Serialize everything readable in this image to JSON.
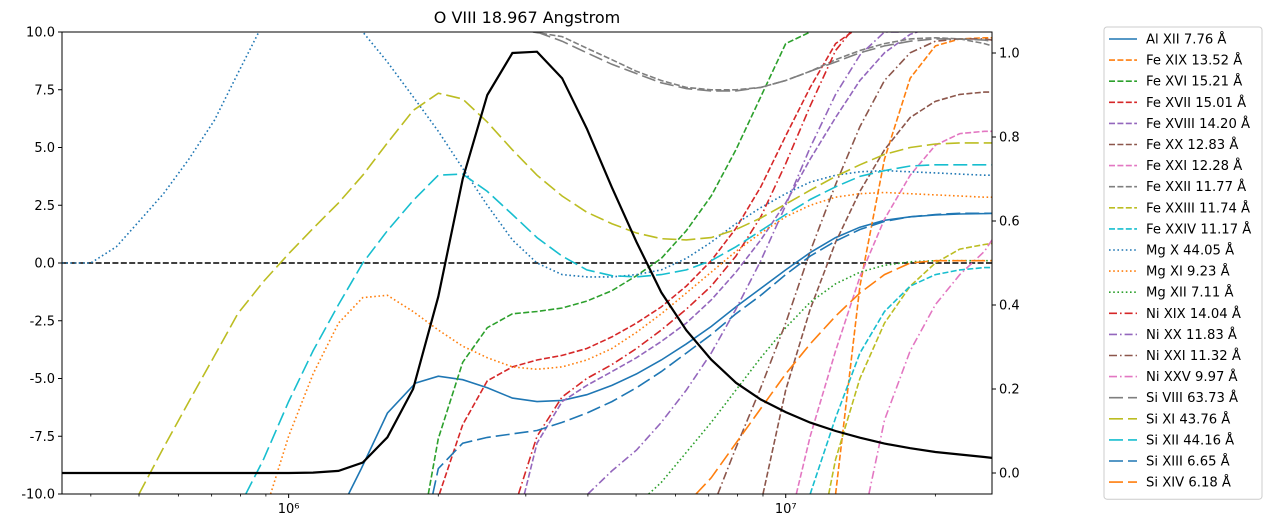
{
  "chart_data": {
    "type": "line",
    "title": "O VIII 18.967 Angstrom",
    "xscale": "log",
    "xlim": [
      350000,
      26000000
    ],
    "x_ticks": [
      {
        "value": 1000000,
        "label": "10⁶"
      },
      {
        "value": 10000000,
        "label": "10⁷"
      }
    ],
    "ylim": [
      -10,
      10
    ],
    "y_ticks": [
      "-10.0",
      "-7.5",
      "-5.0",
      "-2.5",
      "0.0",
      "2.5",
      "5.0",
      "7.5",
      "10.0"
    ],
    "y2lim": [
      -0.05,
      1.05
    ],
    "y2_ticks": [
      "0.0",
      "0.2",
      "0.4",
      "0.6",
      "0.8",
      "1.0"
    ],
    "zero_line": {
      "y": 0,
      "color": "#000000",
      "dash": "dashed"
    },
    "legend_position": "outside-right",
    "series": [
      {
        "name": "Al XII 7.76 Å",
        "color": "#1f77b4",
        "dash": "solid",
        "x": [
          1320000,
          1400000,
          1580000,
          1800000,
          2000000,
          2240000,
          2510000,
          2820000,
          3160000,
          3550000,
          3980000,
          4470000,
          5010000,
          5620000,
          6310000,
          7080000,
          7940000,
          8910000,
          10000000,
          11200000,
          12600000,
          14100000,
          15800000,
          17800000,
          20000000,
          22400000,
          25100000,
          26000000
        ],
        "y": [
          -10,
          -8.9,
          -6.5,
          -5.2,
          -4.9,
          -5.05,
          -5.4,
          -5.85,
          -6.0,
          -5.95,
          -5.7,
          -5.3,
          -4.8,
          -4.2,
          -3.5,
          -2.75,
          -1.9,
          -1.1,
          -0.3,
          0.45,
          1.1,
          1.55,
          1.85,
          2.0,
          2.08,
          2.12,
          2.14,
          2.15
        ]
      },
      {
        "name": "Fe XIX 13.52 Å",
        "color": "#ff7f0e",
        "dash": "dashed",
        "x": [
          12600000,
          14100000,
          15800000,
          17800000,
          20000000,
          22400000,
          25100000,
          26000000
        ],
        "y": [
          -10,
          -1,
          4.5,
          8,
          9.4,
          9.7,
          9.75,
          9.75
        ]
      },
      {
        "name": "Fe XVI 15.21 Å",
        "color": "#2ca02c",
        "dash": "dashed",
        "x": [
          1910000,
          2000000,
          2240000,
          2510000,
          2820000,
          3160000,
          3550000,
          3980000,
          4470000,
          5010000,
          5620000,
          6310000,
          7080000,
          7940000,
          8910000,
          10000000,
          11200000
        ],
        "y": [
          -10,
          -7.6,
          -4.3,
          -2.8,
          -2.2,
          -2.1,
          -1.95,
          -1.65,
          -1.2,
          -0.55,
          0.2,
          1.4,
          2.9,
          4.9,
          7.2,
          9.5,
          10
        ]
      },
      {
        "name": "Fe XVII 15.01 Å",
        "color": "#d62728",
        "dash": "dashed",
        "x": [
          2010000,
          2240000,
          2510000,
          2820000,
          3160000,
          3550000,
          3980000,
          4470000,
          5010000,
          5620000,
          6310000,
          7080000,
          7940000,
          8910000,
          10000000,
          11200000,
          12600000,
          13600000
        ],
        "y": [
          -10,
          -7,
          -5.1,
          -4.5,
          -4.2,
          -4.0,
          -3.7,
          -3.2,
          -2.6,
          -1.9,
          -1.0,
          0.1,
          1.5,
          3.3,
          5.5,
          7.6,
          9.5,
          10
        ]
      },
      {
        "name": "Fe XVIII 14.20 Å",
        "color": "#9467bd",
        "dash": "dashed",
        "x": [
          2980000,
          3160000,
          3550000,
          3980000,
          4470000,
          5010000,
          5620000,
          6310000,
          7080000,
          7940000,
          8910000,
          10000000,
          11200000,
          12600000,
          14100000,
          15800000,
          17800000,
          18400000
        ],
        "y": [
          -10,
          -7.8,
          -6.0,
          -5.3,
          -4.7,
          -4.1,
          -3.4,
          -2.6,
          -1.6,
          -0.4,
          1.0,
          2.6,
          4.5,
          6.3,
          7.9,
          9.1,
          9.9,
          10
        ]
      },
      {
        "name": "Fe XX 12.83 Å",
        "color": "#8c564b",
        "dash": "dashed",
        "x": [
          9000000,
          10000000,
          11200000,
          12600000,
          14100000,
          15800000,
          17800000,
          20000000,
          22400000,
          25100000,
          26000000
        ],
        "y": [
          -10,
          -5.5,
          -2,
          0.9,
          3.1,
          4.9,
          6.3,
          7.0,
          7.3,
          7.4,
          7.4
        ]
      },
      {
        "name": "Fe XXI 12.28 Å",
        "color": "#e377c2",
        "dash": "dashed",
        "x": [
          10500000,
          11200000,
          12600000,
          14100000,
          15800000,
          17800000,
          20000000,
          22400000,
          25100000,
          26000000
        ],
        "y": [
          -10,
          -7.5,
          -3.8,
          -0.6,
          1.9,
          3.8,
          5.1,
          5.6,
          5.7,
          5.7
        ]
      },
      {
        "name": "Fe XXII 11.77 Å",
        "color": "#7f7f7f",
        "dash": "dashed",
        "x": [
          3100000,
          3550000,
          3980000,
          4470000,
          5010000,
          5620000,
          6310000,
          7080000,
          7940000,
          8910000,
          10000000,
          11200000,
          12600000,
          14100000,
          15800000,
          17800000,
          20000000,
          22400000,
          25100000,
          26000000
        ],
        "y": [
          10,
          9.8,
          9.3,
          8.8,
          8.3,
          7.9,
          7.6,
          7.5,
          7.5,
          7.6,
          7.9,
          8.3,
          8.8,
          9.2,
          9.5,
          9.7,
          9.75,
          9.7,
          9.5,
          9.4
        ]
      },
      {
        "name": "Fe XXIII 11.74 Å",
        "color": "#bcbd22",
        "dash": "dashed",
        "x": [
          12200000,
          12600000,
          14100000,
          15800000,
          17800000,
          20000000,
          22400000,
          25100000,
          26000000
        ],
        "y": [
          -10,
          -8.5,
          -5.0,
          -2.6,
          -1.0,
          0.0,
          0.6,
          0.8,
          0.85
        ]
      },
      {
        "name": "Fe XXIV 11.17 Å",
        "color": "#17becf",
        "dash": "dashed",
        "x": [
          11200000,
          12600000,
          14100000,
          15800000,
          17800000,
          20000000,
          22400000,
          25100000,
          26000000
        ],
        "y": [
          -10,
          -6.7,
          -3.9,
          -2.1,
          -1.0,
          -0.5,
          -0.3,
          -0.2,
          -0.2
        ]
      },
      {
        "name": "Mg X 44.05 Å",
        "color": "#1f77b4",
        "dash": "dotted",
        "x": [
          350000,
          400000,
          450000,
          500000,
          560000,
          630000,
          710000,
          790000,
          890000,
          1000000,
          1120000,
          1260000,
          1410000,
          1580000,
          1780000,
          2000000,
          2240000,
          2510000,
          2820000,
          3160000,
          3550000,
          3980000,
          4470000,
          5010000,
          5620000,
          6310000,
          7080000,
          7940000,
          8910000,
          10000000,
          11200000,
          12600000,
          14100000,
          15800000,
          17800000,
          20000000,
          22400000,
          25100000,
          26000000
        ],
        "y": [
          0,
          0,
          0.7,
          1.8,
          3,
          4.5,
          6.2,
          8.2,
          10.4,
          11.6,
          11.5,
          11,
          10,
          8.7,
          7.2,
          5.7,
          4.1,
          2.5,
          1.0,
          0,
          -0.5,
          -0.6,
          -0.6,
          -0.5,
          -0.3,
          0.2,
          0.9,
          1.7,
          2.4,
          3.0,
          3.5,
          3.8,
          3.95,
          4.0,
          3.95,
          3.9,
          3.85,
          3.8,
          3.8
        ]
      },
      {
        "name": "Mg XI 9.23 Å",
        "color": "#ff7f0e",
        "dash": "dotted",
        "x": [
          920000,
          1000000,
          1120000,
          1260000,
          1410000,
          1580000,
          1780000,
          2000000,
          2240000,
          2510000,
          2820000,
          3160000,
          3550000,
          3980000,
          4470000,
          5010000,
          5620000,
          6310000,
          7080000,
          7940000,
          8910000,
          10000000,
          11200000,
          12600000,
          14100000,
          15800000,
          17800000,
          20000000,
          22400000,
          25100000,
          26000000
        ],
        "y": [
          -10,
          -7.5,
          -4.8,
          -2.6,
          -1.5,
          -1.4,
          -2.1,
          -2.9,
          -3.6,
          -4.1,
          -4.5,
          -4.6,
          -4.5,
          -4.2,
          -3.7,
          -3.0,
          -2.2,
          -1.3,
          -0.4,
          0.5,
          1.3,
          2.0,
          2.5,
          2.85,
          3.0,
          3.05,
          3.0,
          2.95,
          2.9,
          2.85,
          2.85
        ]
      },
      {
        "name": "Mg XII 7.11 Å",
        "color": "#2ca02c",
        "dash": "dotted",
        "x": [
          5300000,
          5620000,
          6310000,
          7080000,
          7940000,
          8910000,
          10000000,
          11200000,
          12600000,
          14100000,
          15800000,
          17800000,
          20000000,
          22400000,
          25100000,
          26000000
        ],
        "y": [
          -10,
          -9.5,
          -8.2,
          -6.9,
          -5.5,
          -4.1,
          -2.8,
          -1.7,
          -0.9,
          -0.4,
          -0.1,
          0.05,
          0.1,
          0.1,
          0.1,
          0.1
        ]
      },
      {
        "name": "Ni XIX 14.04 Å",
        "color": "#d62728",
        "dash": "dashdot",
        "x": [
          2900000,
          3160000,
          3550000,
          3980000,
          4470000,
          5010000,
          5620000,
          6310000,
          7080000,
          7940000,
          8910000,
          10000000,
          11200000,
          12600000,
          13500000
        ],
        "y": [
          -10,
          -7.5,
          -5.8,
          -5.0,
          -4.4,
          -3.7,
          -2.9,
          -2.0,
          -1.0,
          0.3,
          2.0,
          4.3,
          6.8,
          9.2,
          10
        ]
      },
      {
        "name": "Ni XX 11.83 Å",
        "color": "#9467bd",
        "dash": "dashdot",
        "x": [
          4000000,
          4470000,
          5010000,
          5620000,
          6310000,
          7080000,
          7940000,
          8910000,
          10000000,
          11200000,
          12600000,
          14100000,
          15800000,
          17000000
        ],
        "y": [
          -10,
          -9.0,
          -8.1,
          -6.9,
          -5.5,
          -3.9,
          -2.0,
          0.1,
          2.5,
          5.0,
          7.3,
          9.0,
          10,
          10
        ]
      },
      {
        "name": "Ni XXI 11.32 Å",
        "color": "#8c564b",
        "dash": "dashdot",
        "x": [
          7300000,
          7940000,
          8910000,
          10000000,
          11200000,
          12600000,
          14100000,
          15800000,
          17800000,
          20000000,
          22400000,
          25100000,
          26000000
        ],
        "y": [
          -10,
          -8,
          -5.4,
          -2.6,
          0.5,
          3.4,
          5.9,
          7.9,
          9.1,
          9.6,
          9.7,
          9.7,
          9.65
        ]
      },
      {
        "name": "Ni XXV 9.97 Å",
        "color": "#e377c2",
        "dash": "dashdot",
        "x": [
          14700000,
          15800000,
          17800000,
          20000000,
          22400000,
          25100000,
          26000000
        ],
        "y": [
          -10,
          -6.8,
          -3.8,
          -1.8,
          -0.5,
          0.5,
          1.0
        ]
      },
      {
        "name": "Si VIII 63.73 Å",
        "color": "#7f7f7f",
        "dash": "longdash",
        "x": [
          3160000,
          3550000,
          3980000,
          4470000,
          5010000,
          5620000,
          6310000,
          7080000,
          7940000,
          8910000,
          10000000,
          11200000,
          12600000,
          14100000,
          15800000,
          17800000,
          20000000,
          22400000,
          25100000,
          26000000
        ],
        "y": [
          10,
          9.6,
          9.1,
          8.6,
          8.2,
          7.8,
          7.55,
          7.45,
          7.45,
          7.6,
          7.9,
          8.3,
          8.7,
          9.1,
          9.4,
          9.6,
          9.7,
          9.7,
          9.65,
          9.6
        ]
      },
      {
        "name": "Si XI 43.76 Å",
        "color": "#bcbd22",
        "dash": "longdash",
        "x": [
          500000,
          560000,
          630000,
          710000,
          790000,
          890000,
          1000000,
          1120000,
          1260000,
          1410000,
          1580000,
          1780000,
          2000000,
          2240000,
          2510000,
          2820000,
          3160000,
          3550000,
          3980000,
          4470000,
          5010000,
          5620000,
          6310000,
          7080000,
          7940000,
          8910000,
          10000000,
          11200000,
          12600000,
          14100000,
          15800000,
          17800000,
          20000000,
          22400000,
          25100000,
          26000000
        ],
        "y": [
          -10,
          -8,
          -6,
          -4,
          -2.2,
          -0.8,
          0.4,
          1.5,
          2.6,
          3.8,
          5.2,
          6.6,
          7.35,
          7.1,
          6.1,
          4.9,
          3.8,
          2.9,
          2.2,
          1.7,
          1.3,
          1.05,
          1.0,
          1.1,
          1.45,
          1.95,
          2.55,
          3.15,
          3.75,
          4.25,
          4.7,
          5.0,
          5.15,
          5.2,
          5.2,
          5.2
        ]
      },
      {
        "name": "Si XII 44.16 Å",
        "color": "#17becf",
        "dash": "longdash",
        "x": [
          820000,
          890000,
          1000000,
          1120000,
          1260000,
          1410000,
          1580000,
          1780000,
          2000000,
          2240000,
          2510000,
          2820000,
          3160000,
          3550000,
          3980000,
          4470000,
          5010000,
          5620000,
          6310000,
          7080000,
          7940000,
          8910000,
          10000000,
          11200000,
          12600000,
          14100000,
          15800000,
          17800000,
          20000000,
          22400000,
          25100000,
          26000000
        ],
        "y": [
          -10,
          -8.5,
          -6,
          -3.8,
          -1.8,
          0,
          1.4,
          2.7,
          3.8,
          3.85,
          3.1,
          2.1,
          1.1,
          0.3,
          -0.3,
          -0.55,
          -0.6,
          -0.5,
          -0.3,
          0.1,
          0.7,
          1.4,
          2.1,
          2.75,
          3.3,
          3.75,
          4.0,
          4.2,
          4.25,
          4.25,
          4.25,
          4.25
        ]
      },
      {
        "name": "Si XIII 6.65 Å",
        "color": "#1f77b4",
        "dash": "longdash",
        "x": [
          1950000,
          2000000,
          2240000,
          2510000,
          2820000,
          3160000,
          3550000,
          3980000,
          4470000,
          5010000,
          5620000,
          6310000,
          7080000,
          7940000,
          8910000,
          10000000,
          11200000,
          12600000,
          14100000,
          15800000,
          17800000,
          20000000,
          22400000,
          25100000,
          26000000
        ],
        "y": [
          -10,
          -8.9,
          -7.8,
          -7.55,
          -7.4,
          -7.25,
          -6.9,
          -6.5,
          -6.0,
          -5.4,
          -4.7,
          -3.9,
          -3.1,
          -2.2,
          -1.4,
          -0.5,
          0.3,
          0.95,
          1.45,
          1.8,
          2.0,
          2.1,
          2.15,
          2.15,
          2.15
        ]
      },
      {
        "name": "Si XIV 6.18 Å",
        "color": "#ff7f0e",
        "dash": "longdash",
        "x": [
          6600000,
          7080000,
          7940000,
          8910000,
          10000000,
          11200000,
          12600000,
          14100000,
          15800000,
          17800000,
          20000000,
          22400000,
          25100000,
          26000000
        ],
        "y": [
          -10,
          -9.3,
          -7.8,
          -6.3,
          -4.8,
          -3.5,
          -2.3,
          -1.3,
          -0.5,
          0.0,
          0.1,
          0.1,
          0.1,
          0.1
        ]
      }
    ],
    "overlay_series": {
      "name": "",
      "color": "#000000",
      "axis": "right",
      "x": [
        350000,
        630000,
        1000000,
        1120000,
        1260000,
        1410000,
        1580000,
        1780000,
        2000000,
        2240000,
        2510000,
        2820000,
        3160000,
        3550000,
        3980000,
        4470000,
        5010000,
        5620000,
        6310000,
        7080000,
        7940000,
        8910000,
        10000000,
        11200000,
        12600000,
        14100000,
        15800000,
        17800000,
        20000000,
        22400000,
        25100000,
        26000000
      ],
      "y": [
        0,
        0,
        0,
        0.001,
        0.005,
        0.025,
        0.085,
        0.2,
        0.42,
        0.7,
        0.9,
        1.0,
        1.003,
        0.94,
        0.82,
        0.68,
        0.55,
        0.43,
        0.34,
        0.27,
        0.215,
        0.175,
        0.145,
        0.12,
        0.1,
        0.084,
        0.07,
        0.059,
        0.05,
        0.044,
        0.038,
        0.036
      ]
    }
  }
}
